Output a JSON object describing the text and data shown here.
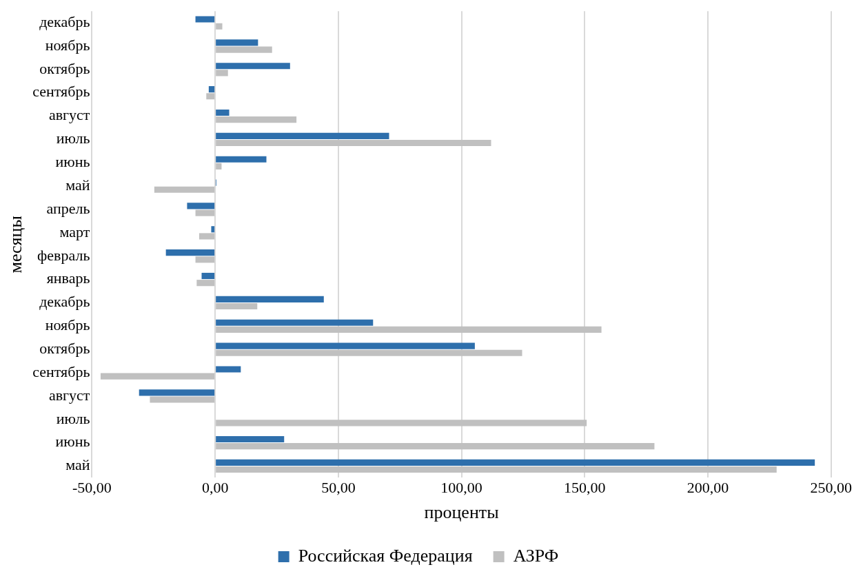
{
  "chart_data": {
    "type": "bar",
    "orientation": "horizontal",
    "xlabel": "проценты",
    "ylabel": "месяцы",
    "categories": [
      "декабрь",
      "ноябрь",
      "октябрь",
      "сентябрь",
      "август",
      "июль",
      "июнь",
      "май",
      "апрель",
      "март",
      "февраль",
      "январь",
      "декабрь",
      "ноябрь",
      "октябрь",
      "сентябрь",
      "август",
      "июль",
      "июнь",
      "май"
    ],
    "series": [
      {
        "name": "Российская Федерация",
        "color": "#2e6fac",
        "values": [
          -8.0,
          17.4,
          30.4,
          -2.6,
          5.7,
          70.6,
          20.8,
          0.5,
          -11.4,
          -1.6,
          -20.0,
          -5.5,
          44.1,
          64.1,
          105.4,
          10.4,
          -30.9,
          null,
          28.0,
          243.4
        ]
      },
      {
        "name": "АЗРФ",
        "color": "#c0c0c0",
        "values": [
          2.9,
          23.1,
          5.2,
          -3.6,
          33.0,
          112.0,
          2.6,
          -24.7,
          -8.0,
          -6.5,
          -8.0,
          -7.5,
          17.1,
          156.8,
          124.6,
          -46.5,
          -26.5,
          150.8,
          178.3,
          227.9
        ]
      }
    ],
    "xlim": [
      -50,
      250
    ],
    "xticks": [
      {
        "value": -50,
        "label": "-50,00"
      },
      {
        "value": 0,
        "label": "0,00"
      },
      {
        "value": 50,
        "label": "50,00"
      },
      {
        "value": 100,
        "label": "100,00"
      },
      {
        "value": 150,
        "label": "150,00"
      },
      {
        "value": 200,
        "label": "200,00"
      },
      {
        "value": 250,
        "label": "250,00"
      }
    ],
    "grid": "x",
    "legend": "bottom"
  }
}
